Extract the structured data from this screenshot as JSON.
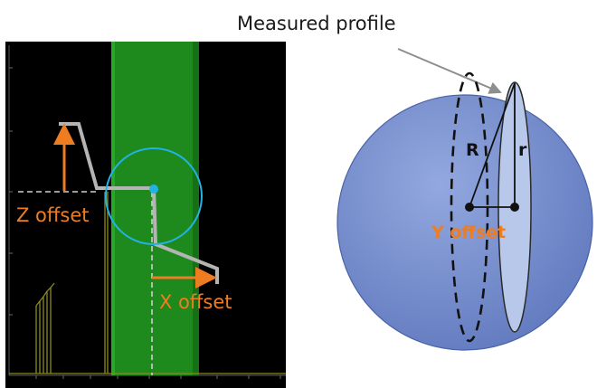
{
  "figure": {
    "title_label": "Measured profile",
    "left_panel": {
      "z_offset_label": "Z offset",
      "x_offset_label": "X offset"
    },
    "right_panel": {
      "R_label": "R",
      "r_label": "r",
      "y_offset_label": "Y offset"
    }
  },
  "colors": {
    "plot_background": "#000000",
    "green_band": "#1e8a1e",
    "orange_accent": "#ee7d22",
    "cyan_circle": "#22b2e6",
    "profile_gray": "#b4b4b4",
    "sphere_fill": "#7891cf",
    "sphere_disc": "#b8c8ea",
    "yellow_data": "#8a8a18"
  },
  "icons": {
    "arrows": "orange-arrow-icon",
    "pointer": "gray-pointer-arrow-icon"
  }
}
